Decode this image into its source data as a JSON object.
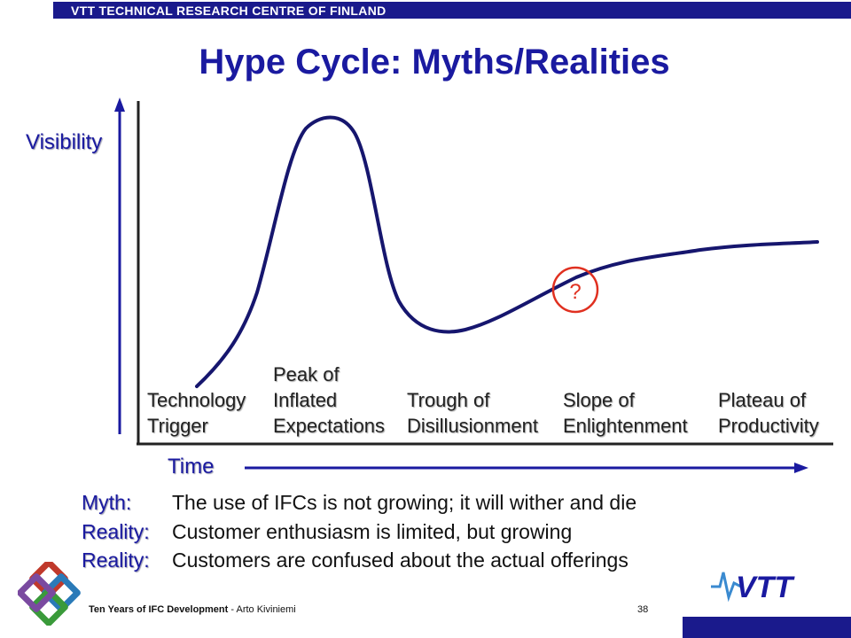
{
  "header": {
    "org": "VTT TECHNICAL RESEARCH CENTRE OF FINLAND"
  },
  "title": "Hype Cycle: Myths/Realities",
  "axes": {
    "y_label": "Visibility",
    "x_label": "Time"
  },
  "phases": [
    {
      "label": "Technology\nTrigger"
    },
    {
      "label": "Peak of\nInflated\nExpectations"
    },
    {
      "label": "Trough of\nDisillusionment"
    },
    {
      "label": "Slope of\nEnlightenment"
    },
    {
      "label": "Plateau of\nProductivity"
    }
  ],
  "marker": {
    "text": "?",
    "color": "#e03020"
  },
  "statements": [
    {
      "label": "Myth:",
      "text": "The use of IFCs is not growing; it will wither and die"
    },
    {
      "label": "Reality:",
      "text": "Customer enthusiasm is limited, but growing"
    },
    {
      "label": "Reality:",
      "text": "Customers are confused about the actual offerings"
    }
  ],
  "footer": {
    "title": "Ten Years of IFC Development",
    "separator": " - ",
    "author": "Arto Kiviniemi",
    "page": "38"
  },
  "logo": {
    "text": "VTT"
  },
  "colors": {
    "brand_blue": "#1a1a8c",
    "accent_blue": "#1a1aa0",
    "curve": "#16166e",
    "marker": "#e03020"
  }
}
